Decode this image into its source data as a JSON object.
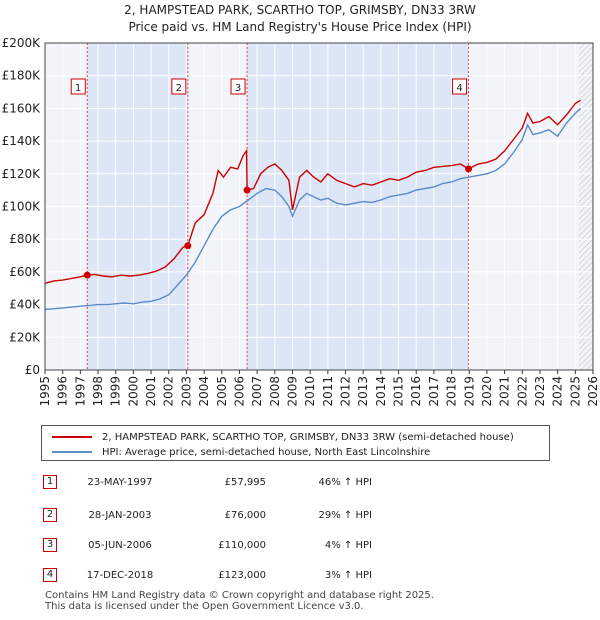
{
  "chart_data": {
    "type": "line",
    "title": "2, HAMPSTEAD PARK, SCARTHO TOP, GRIMSBY, DN33 3RW",
    "subtitle": "Price paid vs. HM Land Registry's House Price Index (HPI)",
    "xlabel": "",
    "ylabel": "",
    "xlim": [
      1995,
      2026
    ],
    "ylim": [
      0,
      200000
    ],
    "x_ticks": [
      1995,
      1996,
      1997,
      1998,
      1999,
      2000,
      2001,
      2002,
      2003,
      2004,
      2005,
      2006,
      2007,
      2008,
      2009,
      2010,
      2011,
      2012,
      2013,
      2014,
      2015,
      2016,
      2017,
      2018,
      2019,
      2020,
      2021,
      2022,
      2023,
      2024,
      2025,
      2026
    ],
    "y_ticks": [
      0,
      20000,
      40000,
      60000,
      80000,
      100000,
      120000,
      140000,
      160000,
      180000,
      200000
    ],
    "y_tick_labels": [
      "£0",
      "£20K",
      "£40K",
      "£60K",
      "£80K",
      "£100K",
      "£120K",
      "£140K",
      "£160K",
      "£180K",
      "£200K"
    ],
    "grid": true,
    "forecast_from": 2025.2,
    "series": [
      {
        "name": "2, HAMPSTEAD PARK, SCARTHO TOP, GRIMSBY, DN33 3RW (semi-detached house)",
        "color": "#cc0000",
        "x": [
          1995.0,
          1995.5,
          1996.0,
          1996.5,
          1997.0,
          1997.39,
          1997.8,
          1998.3,
          1998.8,
          1999.3,
          1999.8,
          2000.3,
          2000.8,
          2001.3,
          2001.8,
          2002.3,
          2002.8,
          2003.08,
          2003.5,
          2004.0,
          2004.5,
          2004.8,
          2005.1,
          2005.5,
          2005.9,
          2006.2,
          2006.4,
          2006.43,
          2006.8,
          2007.2,
          2007.6,
          2008.0,
          2008.4,
          2008.8,
          2009.0,
          2009.4,
          2009.8,
          2010.2,
          2010.6,
          2011.0,
          2011.5,
          2012.0,
          2012.5,
          2013.0,
          2013.5,
          2014.0,
          2014.5,
          2015.0,
          2015.5,
          2016.0,
          2016.5,
          2017.0,
          2017.5,
          2018.0,
          2018.5,
          2018.96,
          2019.5,
          2020.0,
          2020.5,
          2021.0,
          2021.5,
          2022.0,
          2022.3,
          2022.6,
          2023.0,
          2023.5,
          2024.0,
          2024.5,
          2025.0,
          2025.3
        ],
        "y": [
          53000,
          54500,
          55000,
          56000,
          57000,
          57995,
          58500,
          57500,
          57000,
          58000,
          57500,
          58000,
          59000,
          60500,
          63000,
          68000,
          75000,
          76000,
          90000,
          95000,
          108000,
          122000,
          118000,
          124000,
          123000,
          131000,
          134000,
          110000,
          111000,
          120000,
          124000,
          126000,
          122000,
          116000,
          98000,
          118000,
          122000,
          118000,
          115000,
          120000,
          116000,
          114000,
          112000,
          114000,
          113000,
          115000,
          117000,
          116000,
          118000,
          121000,
          122000,
          124000,
          124500,
          125000,
          126000,
          123000,
          126000,
          127000,
          129000,
          134000,
          141000,
          148000,
          157000,
          151000,
          152000,
          155000,
          150000,
          156000,
          163000,
          165000
        ]
      },
      {
        "name": "HPI: Average price, semi-detached house, North East Lincolnshire",
        "color": "#5b8cc8",
        "x": [
          1995.0,
          1995.5,
          1996.0,
          1996.5,
          1997.0,
          1997.5,
          1998.0,
          1998.5,
          1999.0,
          1999.5,
          2000.0,
          2000.5,
          2001.0,
          2001.5,
          2002.0,
          2002.5,
          2003.0,
          2003.5,
          2004.0,
          2004.5,
          2005.0,
          2005.5,
          2006.0,
          2006.5,
          2007.0,
          2007.5,
          2008.0,
          2008.4,
          2008.8,
          2009.0,
          2009.4,
          2009.8,
          2010.2,
          2010.6,
          2011.0,
          2011.5,
          2012.0,
          2012.5,
          2013.0,
          2013.5,
          2014.0,
          2014.5,
          2015.0,
          2015.5,
          2016.0,
          2016.5,
          2017.0,
          2017.5,
          2018.0,
          2018.5,
          2019.0,
          2019.5,
          2020.0,
          2020.5,
          2021.0,
          2021.5,
          2022.0,
          2022.3,
          2022.6,
          2023.0,
          2023.5,
          2024.0,
          2024.5,
          2025.0,
          2025.3
        ],
        "y": [
          37000,
          37500,
          38000,
          38500,
          39000,
          39500,
          40000,
          40000,
          40500,
          41000,
          40500,
          41500,
          42000,
          43500,
          46000,
          52000,
          58000,
          66000,
          76000,
          86000,
          94000,
          98000,
          100000,
          104000,
          108000,
          111000,
          110000,
          106000,
          100000,
          94000,
          104000,
          108000,
          106000,
          104000,
          105000,
          102000,
          101000,
          102000,
          103000,
          102500,
          104000,
          106000,
          107000,
          108000,
          110000,
          111000,
          112000,
          114000,
          115000,
          117000,
          118000,
          119000,
          120000,
          122000,
          126000,
          133000,
          141000,
          150000,
          144000,
          145000,
          147000,
          143000,
          151000,
          157000,
          160000
        ]
      }
    ],
    "sales": [
      {
        "num": "1",
        "date": "23-MAY-1997",
        "price": "£57,995",
        "hpi": "46% ↑ HPI",
        "x": 1997.39,
        "y": 57995
      },
      {
        "num": "2",
        "date": "28-JAN-2003",
        "price": "£76,000",
        "hpi": "29% ↑ HPI",
        "x": 2003.08,
        "y": 76000
      },
      {
        "num": "3",
        "date": "05-JUN-2006",
        "price": "£110,000",
        "hpi": "4% ↑ HPI",
        "x": 2006.43,
        "y": 110000
      },
      {
        "num": "4",
        "date": "17-DEC-2018",
        "price": "£123,000",
        "hpi": "3% ↑ HPI",
        "x": 2018.96,
        "y": 123000
      }
    ],
    "shaded_ranges": [
      [
        1997.39,
        2003.08
      ],
      [
        2006.43,
        2018.96
      ]
    ]
  },
  "footer": {
    "line1": "Contains HM Land Registry data © Crown copyright and database right 2025.",
    "line2": "This data is licensed under the Open Government Licence v3.0."
  },
  "colors": {
    "red": "#cc0000",
    "blue": "#5b8cc8",
    "shade": "#dde6f7",
    "plot_bg": "#f2f4fa"
  }
}
